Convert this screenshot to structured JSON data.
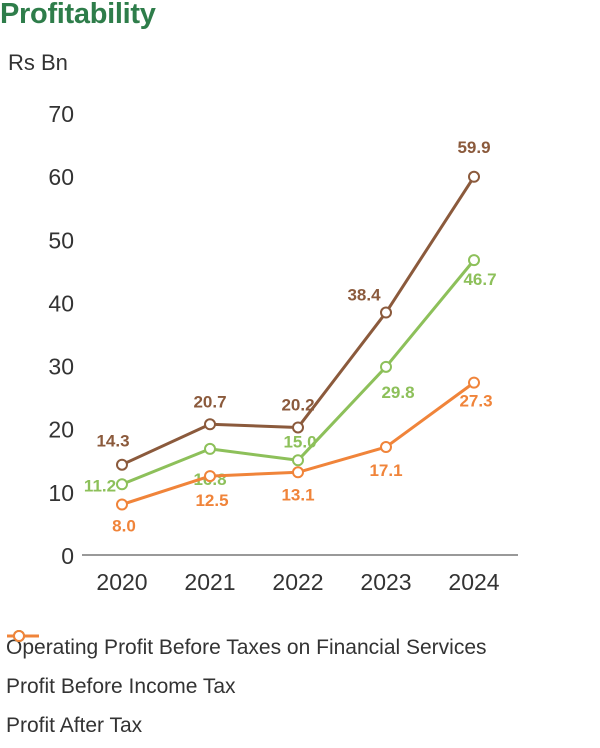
{
  "header": {
    "title": "Profitability"
  },
  "chart_data": {
    "type": "line",
    "title": "Profitability",
    "ylabel": "Rs Bn",
    "xlabel": "",
    "categories": [
      "2020",
      "2021",
      "2022",
      "2023",
      "2024"
    ],
    "ylim": [
      0,
      70
    ],
    "yticks": [
      0,
      10,
      20,
      30,
      40,
      50,
      60,
      70
    ],
    "grid": false,
    "legend_position": "bottom",
    "series": [
      {
        "name": "Operating Profit Before Taxes on Financial Services",
        "color": "#8b5a3c",
        "values": [
          14.3,
          20.7,
          20.2,
          38.4,
          59.9
        ],
        "labels": [
          "14.3",
          "20.7",
          "20.2",
          "38.4",
          "59.9"
        ]
      },
      {
        "name": "Profit Before Income Tax",
        "color": "#8dc05a",
        "values": [
          11.2,
          16.8,
          15.0,
          29.8,
          46.7
        ],
        "labels": [
          "11.2",
          "16.8",
          "15.0",
          "29.8",
          "46.7"
        ]
      },
      {
        "name": "Profit After Tax",
        "color": "#f0843a",
        "values": [
          8.0,
          12.5,
          13.1,
          17.1,
          27.3
        ],
        "labels": [
          "8.0",
          "12.5",
          "13.1",
          "17.1",
          "27.3"
        ]
      }
    ]
  }
}
